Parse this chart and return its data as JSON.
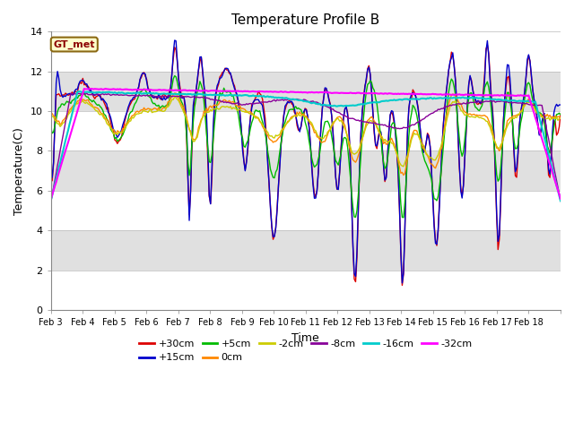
{
  "title": "Temperature Profile B",
  "xlabel": "Time",
  "ylabel": "Temperature(C)",
  "ylim": [
    0,
    14
  ],
  "annotation": "GT_met",
  "background_color": "#ffffff",
  "grid_band_color": "#e0e0e0",
  "series": [
    {
      "label": "+30cm",
      "color": "#dd0000",
      "lw": 1.0
    },
    {
      "label": "+15cm",
      "color": "#0000cc",
      "lw": 1.0
    },
    {
      "label": "+5cm",
      "color": "#00bb00",
      "lw": 1.0
    },
    {
      "label": "0cm",
      "color": "#ff8800",
      "lw": 1.0
    },
    {
      "label": "-2cm",
      "color": "#cccc00",
      "lw": 1.0
    },
    {
      "label": "-8cm",
      "color": "#880099",
      "lw": 1.0
    },
    {
      "label": "-16cm",
      "color": "#00cccc",
      "lw": 1.5
    },
    {
      "label": "-32cm",
      "color": "#ff00ff",
      "lw": 1.5
    }
  ],
  "xtick_labels": [
    "Feb 3",
    "Feb 4",
    "Feb 5",
    "Feb 6",
    "Feb 7",
    "Feb 8",
    "Feb 9",
    "Feb 10",
    "Feb 11",
    "Feb 12",
    "Feb 13",
    "Feb 14",
    "Feb 15",
    "Feb 16",
    "Feb 17",
    "Feb 18"
  ],
  "ytick_vals": [
    0,
    2,
    4,
    6,
    8,
    10,
    12,
    14
  ]
}
